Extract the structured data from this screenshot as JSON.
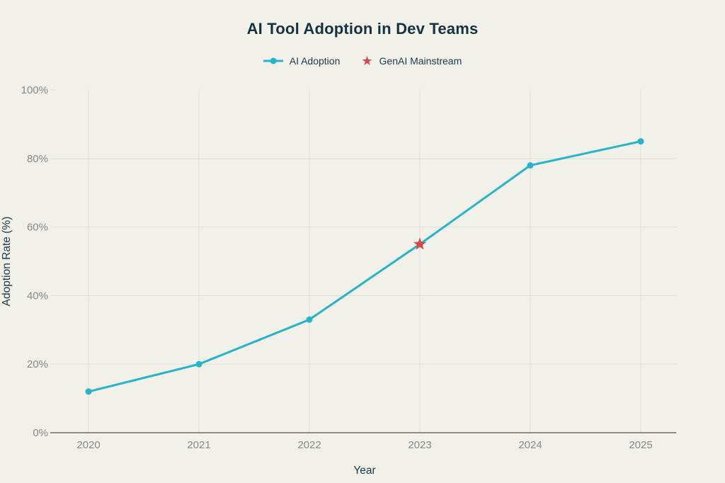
{
  "title": "AI Tool Adoption in Dev Teams",
  "legend": {
    "items": [
      {
        "label": "AI Adoption",
        "marker": "line-dot"
      },
      {
        "label": "GenAI Mainstream",
        "marker": "star"
      }
    ]
  },
  "colors": {
    "background": "#f1f0e9",
    "line": "#25b4c9",
    "star": "#d8454f",
    "title_text": "#14323f",
    "axis_title_text": "#1c3a47",
    "tick_text": "#87878c",
    "gridline": "#e1e0d8",
    "axis_line": "#8e8e89"
  },
  "chart_data": {
    "type": "line",
    "title": "AI Tool Adoption in Dev Teams",
    "xlabel": "Year",
    "ylabel": "Adoption Rate (%)",
    "categories": [
      "2020",
      "2021",
      "2022",
      "2023",
      "2024",
      "2025"
    ],
    "series": [
      {
        "name": "AI Adoption",
        "values": [
          12,
          20,
          33,
          55,
          78,
          85
        ],
        "color": "#25b4c9",
        "marker": "circle"
      },
      {
        "name": "GenAI Mainstream",
        "type": "point",
        "x": "2023",
        "y": 55,
        "color": "#d8454f",
        "marker": "star"
      }
    ],
    "ylim": [
      0,
      100
    ],
    "yticks": [
      0,
      20,
      40,
      60,
      80,
      100
    ],
    "ytick_labels": [
      "0%",
      "20%",
      "40%",
      "60%",
      "80%",
      "100%"
    ],
    "grid": true,
    "legend_position": "top"
  }
}
